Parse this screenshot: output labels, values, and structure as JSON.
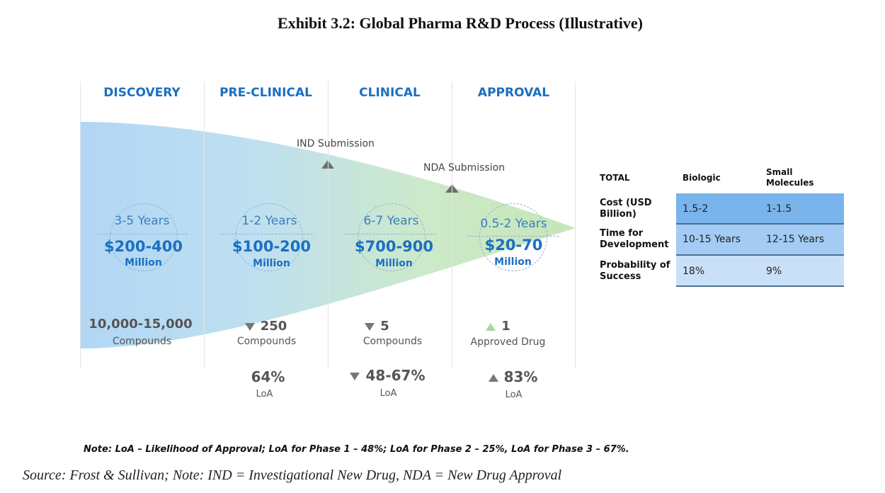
{
  "title": "Exhibit 3.2: Global Pharma R&D Process (Illustrative)",
  "phases": [
    {
      "name": "DISCOVERY",
      "years": "3-5 Years",
      "cost": "$200-400",
      "unit": "Million",
      "count": "10,000-15,000",
      "count_label": "Compounds",
      "count_marker": "none",
      "loa": "",
      "loa_label": "",
      "loa_marker": "none"
    },
    {
      "name": "PRE-CLINICAL",
      "years": "1-2 Years",
      "cost": "$100-200",
      "unit": "Million",
      "count": "250",
      "count_label": "Compounds",
      "count_marker": "down",
      "loa": "64%",
      "loa_label": "LoA",
      "loa_marker": "none"
    },
    {
      "name": "CLINICAL",
      "years": "6-7 Years",
      "cost": "$700-900",
      "unit": "Million",
      "count": "5",
      "count_label": "Compounds",
      "count_marker": "down",
      "loa": "48-67%",
      "loa_label": "LoA",
      "loa_marker": "down"
    },
    {
      "name": "APPROVAL",
      "years": "0.5-2 Years",
      "cost": "$20-70",
      "unit": "Million",
      "count": "1",
      "count_label": "Approved Drug",
      "count_marker": "up-green",
      "loa": "83%",
      "loa_label": "LoA",
      "loa_marker": "up"
    }
  ],
  "milestones": {
    "ind": "IND Submission",
    "nda": "NDA Submission"
  },
  "totals": {
    "header": {
      "label": "TOTAL",
      "col1": "Biologic",
      "col2": "Small Molecules"
    },
    "rows": [
      {
        "label": "Cost (USD Billion)",
        "biologic": "1.5-2",
        "small": "1-1.5",
        "color": "#79b4ec"
      },
      {
        "label": "Time for Development",
        "biologic": "10-15 Years",
        "small": "12-15 Years",
        "color": "#a3cbf3"
      },
      {
        "label": "Probability of Success",
        "biologic": "18%",
        "small": "9%",
        "color": "#c9e0f8"
      }
    ]
  },
  "note": "Note: LoA – Likelihood of Approval; LoA for Phase 1 – 48%; LoA for Phase 2 – 25%,  LoA for Phase 3 – 67%.",
  "source": "Source: Frost & Sullivan; Note: IND = Investigational New Drug, NDA = New Drug Approval",
  "colors": {
    "funnel_start": "#a9d2f3",
    "funnel_end": "#bfe3b0",
    "phase_text": "#1b6fc2"
  }
}
